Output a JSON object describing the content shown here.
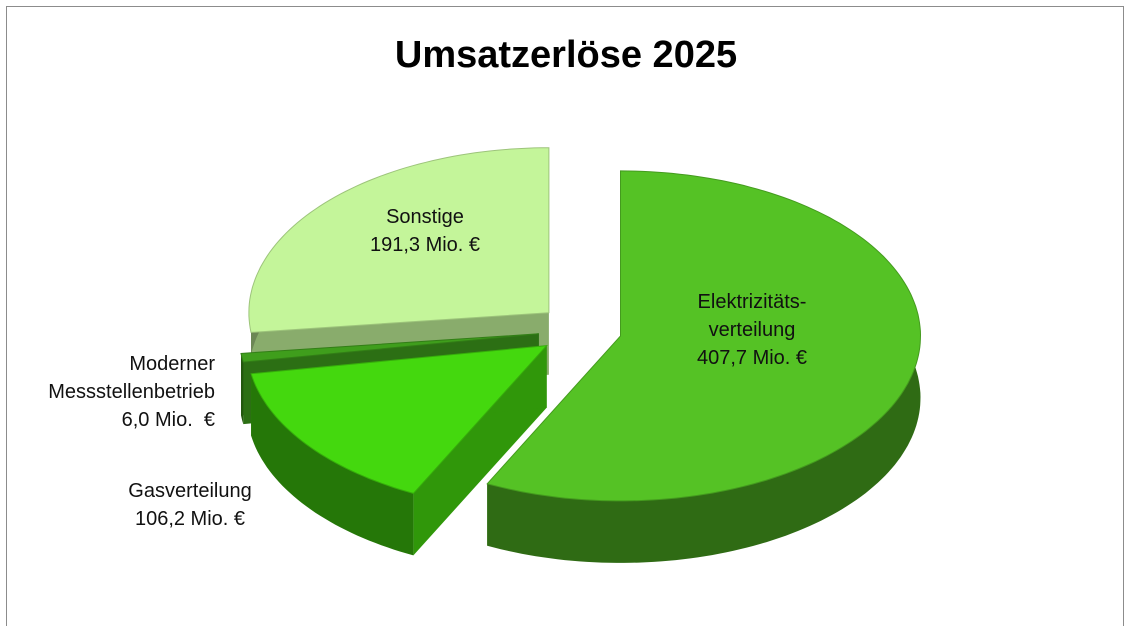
{
  "chart_data": {
    "type": "pie",
    "title": "Umsatzerlöse 2025",
    "categories": [
      "Elektrizitäts-\nverteilung",
      "Gasverteilung",
      "Moderner\nMessstellenbetrieb",
      "Sonstige"
    ],
    "values": [
      407.7,
      106.2,
      6.0,
      191.3
    ],
    "value_labels": [
      "407,7 Mio. €",
      "106,2 Mio. €",
      "6,0 Mio.  €",
      "191,3 Mio. €"
    ],
    "colors": [
      "#55c225",
      "#44d80e",
      "#3f9e1c",
      "#c4f59a"
    ]
  }
}
